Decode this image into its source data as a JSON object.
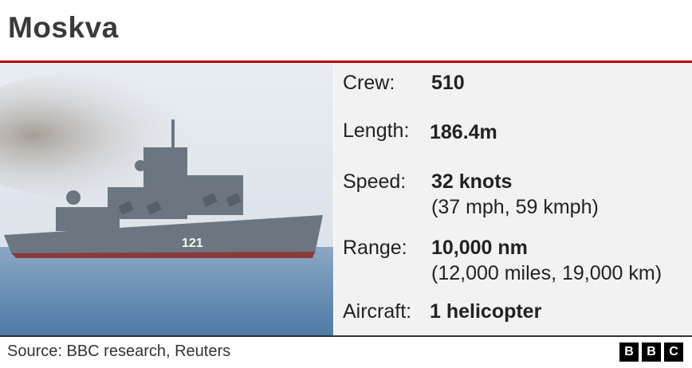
{
  "title": "Moskva",
  "specs": [
    {
      "label": "Crew:",
      "value": "510"
    },
    {
      "label": "Length:",
      "value": "186.4m"
    },
    {
      "label": "Speed:",
      "value": "32 knots",
      "sub": "(37 mph, 59 kmph)"
    },
    {
      "label": "Range:",
      "value": "10,000 nm",
      "sub": "(12,000 miles, 19,000 km)"
    },
    {
      "label": "Aircraft:",
      "value": "1 helicopter"
    }
  ],
  "ship_hull_number": "121",
  "source": "Source: BBC research, Reuters",
  "logo": [
    "B",
    "B",
    "C"
  ],
  "colors": {
    "accent": "#b80000",
    "panel": "#f2f2f2"
  }
}
